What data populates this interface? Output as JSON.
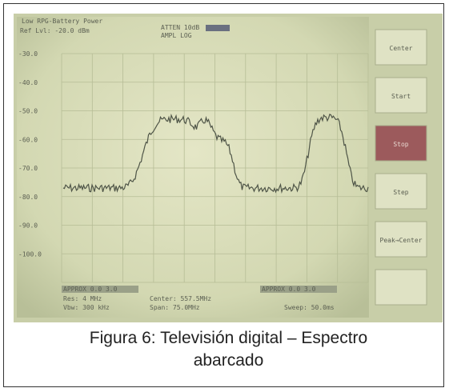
{
  "screen": {
    "warning": "Low RPG-Battery Power",
    "ref_level": "Ref Lvl: -20.0 dBm",
    "atten": "ATTEN 10dB",
    "ampl": "AMPL LOG",
    "y_labels": [
      "-30.0",
      "-40.0",
      "-50.0",
      "-60.0",
      "-70.0",
      "-80.0",
      "-90.0",
      "-100.0"
    ],
    "buttons": [
      "Center",
      "Start",
      "Stop",
      "Step",
      "Peak→Center"
    ],
    "marker_left": "APPROX 0.0 3.0",
    "marker_right": "APPROX 0.0 3.0",
    "res": "Res: 4 MHz",
    "vbw": "Vbw: 300 kHz",
    "center": "Center: 557.5MHz",
    "span": "Span: 75.0MHz",
    "sweep": "Sweep: 50.0ms"
  },
  "caption": {
    "line1": "Figura 6: Televisión digital – Espectro",
    "line2": "abarcado"
  }
}
